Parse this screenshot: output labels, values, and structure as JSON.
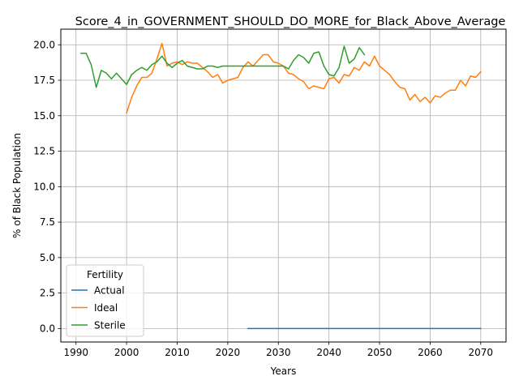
{
  "chart_data": {
    "type": "line",
    "title": "Score_4_in_GOVERNMENT_SHOULD_DO_MORE_for_Black_Above_Average",
    "xlabel": "Years",
    "ylabel": "% of Black Population",
    "xlim": [
      1987,
      2075
    ],
    "ylim": [
      -0.95,
      21.1
    ],
    "xticks": [
      1990,
      2000,
      2010,
      2020,
      2030,
      2040,
      2050,
      2060,
      2070
    ],
    "yticks": [
      0.0,
      2.5,
      5.0,
      7.5,
      10.0,
      12.5,
      15.0,
      17.5,
      20.0
    ],
    "ytick_labels": [
      "0.0",
      "2.5",
      "5.0",
      "7.5",
      "10.0",
      "12.5",
      "15.0",
      "17.5",
      "20.0"
    ],
    "grid": true,
    "legend": {
      "title": "Fertility",
      "placement": "lower-left"
    },
    "series": [
      {
        "name": "Actual",
        "color": "#1f77b4",
        "points": [
          [
            2024,
            0.0
          ],
          [
            2030,
            0.0
          ],
          [
            2040,
            0.0
          ],
          [
            2050,
            0.0
          ],
          [
            2060,
            0.0
          ],
          [
            2070,
            0.0
          ]
        ]
      },
      {
        "name": "Ideal",
        "color": "#ff7f0e",
        "points": [
          [
            2000,
            15.2
          ],
          [
            2001,
            16.3
          ],
          [
            2002,
            17.1
          ],
          [
            2003,
            17.7
          ],
          [
            2004,
            17.7
          ],
          [
            2005,
            18.0
          ],
          [
            2006,
            19.0
          ],
          [
            2007,
            20.1
          ],
          [
            2008,
            18.5
          ],
          [
            2009,
            18.7
          ],
          [
            2010,
            18.8
          ],
          [
            2011,
            18.6
          ],
          [
            2012,
            18.8
          ],
          [
            2013,
            18.7
          ],
          [
            2014,
            18.7
          ],
          [
            2015,
            18.4
          ],
          [
            2016,
            18.1
          ],
          [
            2017,
            17.7
          ],
          [
            2018,
            17.9
          ],
          [
            2019,
            17.3
          ],
          [
            2020,
            17.5
          ],
          [
            2021,
            17.6
          ],
          [
            2022,
            17.7
          ],
          [
            2023,
            18.4
          ],
          [
            2024,
            18.8
          ],
          [
            2025,
            18.5
          ],
          [
            2026,
            18.9
          ],
          [
            2027,
            19.3
          ],
          [
            2028,
            19.3
          ],
          [
            2029,
            18.8
          ],
          [
            2030,
            18.7
          ],
          [
            2031,
            18.5
          ],
          [
            2032,
            18.0
          ],
          [
            2033,
            17.9
          ],
          [
            2034,
            17.6
          ],
          [
            2035,
            17.4
          ],
          [
            2036,
            16.9
          ],
          [
            2037,
            17.1
          ],
          [
            2038,
            17.0
          ],
          [
            2039,
            16.9
          ],
          [
            2040,
            17.6
          ],
          [
            2041,
            17.7
          ],
          [
            2042,
            17.3
          ],
          [
            2043,
            17.9
          ],
          [
            2044,
            17.8
          ],
          [
            2045,
            18.4
          ],
          [
            2046,
            18.2
          ],
          [
            2047,
            18.8
          ],
          [
            2048,
            18.5
          ],
          [
            2049,
            19.2
          ],
          [
            2050,
            18.5
          ],
          [
            2051,
            18.2
          ],
          [
            2052,
            17.9
          ],
          [
            2053,
            17.4
          ],
          [
            2054,
            17.0
          ],
          [
            2055,
            16.9
          ],
          [
            2056,
            16.1
          ],
          [
            2057,
            16.5
          ],
          [
            2058,
            16.0
          ],
          [
            2059,
            16.3
          ],
          [
            2060,
            15.9
          ],
          [
            2061,
            16.4
          ],
          [
            2062,
            16.3
          ],
          [
            2063,
            16.6
          ],
          [
            2064,
            16.8
          ],
          [
            2065,
            16.8
          ],
          [
            2066,
            17.5
          ],
          [
            2067,
            17.1
          ],
          [
            2068,
            17.8
          ],
          [
            2069,
            17.7
          ],
          [
            2070,
            18.1
          ]
        ]
      },
      {
        "name": "Sterile",
        "color": "#2ca02c",
        "points": [
          [
            1991,
            19.4
          ],
          [
            1992,
            19.4
          ],
          [
            1993,
            18.6
          ],
          [
            1994,
            17.0
          ],
          [
            1995,
            18.2
          ],
          [
            1996,
            18.0
          ],
          [
            1997,
            17.6
          ],
          [
            1998,
            18.0
          ],
          [
            1999,
            17.6
          ],
          [
            2000,
            17.2
          ],
          [
            2001,
            17.9
          ],
          [
            2002,
            18.2
          ],
          [
            2003,
            18.4
          ],
          [
            2004,
            18.2
          ],
          [
            2005,
            18.6
          ],
          [
            2006,
            18.8
          ],
          [
            2007,
            19.2
          ],
          [
            2008,
            18.7
          ],
          [
            2009,
            18.4
          ],
          [
            2010,
            18.7
          ],
          [
            2011,
            18.9
          ],
          [
            2012,
            18.5
          ],
          [
            2013,
            18.4
          ],
          [
            2014,
            18.3
          ],
          [
            2015,
            18.3
          ],
          [
            2016,
            18.5
          ],
          [
            2017,
            18.5
          ],
          [
            2018,
            18.4
          ],
          [
            2019,
            18.5
          ],
          [
            2020,
            18.5
          ],
          [
            2021,
            18.5
          ],
          [
            2022,
            18.5
          ],
          [
            2023,
            18.5
          ],
          [
            2024,
            18.5
          ],
          [
            2025,
            18.5
          ],
          [
            2026,
            18.5
          ],
          [
            2027,
            18.5
          ],
          [
            2028,
            18.5
          ],
          [
            2029,
            18.5
          ],
          [
            2030,
            18.5
          ],
          [
            2031,
            18.5
          ],
          [
            2032,
            18.3
          ],
          [
            2033,
            18.9
          ],
          [
            2034,
            19.3
          ],
          [
            2035,
            19.1
          ],
          [
            2036,
            18.7
          ],
          [
            2037,
            19.4
          ],
          [
            2038,
            19.5
          ],
          [
            2039,
            18.5
          ],
          [
            2040,
            17.9
          ],
          [
            2041,
            17.8
          ],
          [
            2042,
            18.4
          ],
          [
            2043,
            19.9
          ],
          [
            2044,
            18.7
          ],
          [
            2045,
            19.0
          ],
          [
            2046,
            19.8
          ],
          [
            2047,
            19.3
          ]
        ]
      }
    ]
  }
}
